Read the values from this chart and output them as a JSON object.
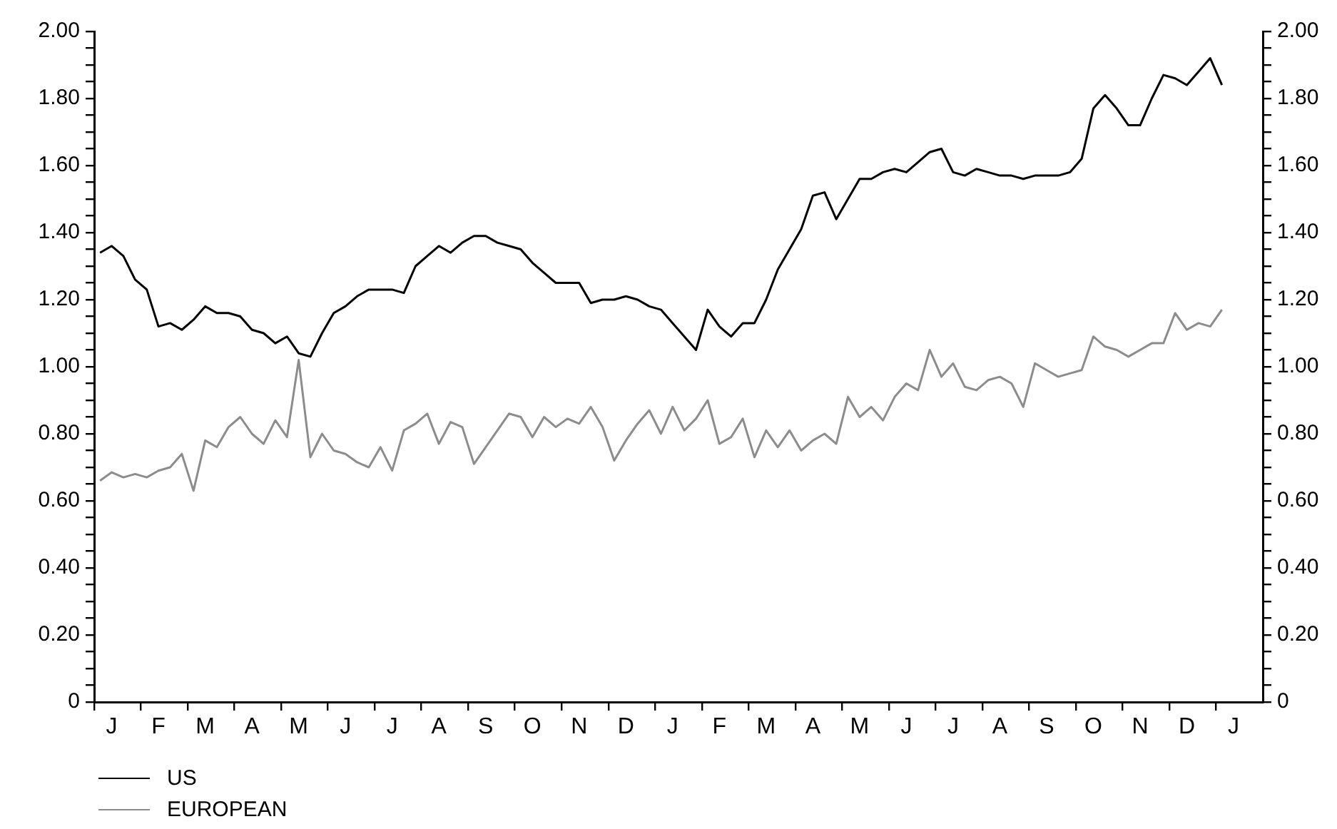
{
  "chart_data": {
    "type": "line",
    "categories": [
      null,
      "J",
      null,
      null,
      null,
      "F",
      null,
      null,
      null,
      "M",
      null,
      null,
      null,
      "A",
      null,
      null,
      null,
      "M",
      null,
      null,
      null,
      "J",
      null,
      null,
      null,
      "J",
      null,
      null,
      null,
      "A",
      null,
      null,
      null,
      "S",
      null,
      null,
      null,
      "O",
      null,
      null,
      null,
      "N",
      null,
      null,
      null,
      "D",
      null,
      null,
      null,
      "J",
      null,
      null,
      null,
      "F",
      null,
      null,
      null,
      "M",
      null,
      null,
      null,
      "A",
      null,
      null,
      null,
      "M",
      null,
      null,
      null,
      "J",
      null,
      null,
      null,
      "J",
      null,
      null,
      null,
      "A",
      null,
      null,
      null,
      "S",
      null,
      null,
      null,
      "O",
      null,
      null,
      null,
      "N",
      null,
      null,
      null,
      "D",
      null,
      null,
      null,
      "J",
      null,
      null
    ],
    "series": [
      {
        "name": "US",
        "color": "#000000",
        "values": [
          1.34,
          1.36,
          1.33,
          1.26,
          1.23,
          1.12,
          1.13,
          1.11,
          1.14,
          1.18,
          1.16,
          1.16,
          1.15,
          1.11,
          1.1,
          1.07,
          1.09,
          1.04,
          1.03,
          1.1,
          1.16,
          1.18,
          1.21,
          1.23,
          1.23,
          1.23,
          1.22,
          1.3,
          1.33,
          1.36,
          1.34,
          1.37,
          1.39,
          1.39,
          1.37,
          1.36,
          1.35,
          1.31,
          1.28,
          1.25,
          1.25,
          1.25,
          1.19,
          1.2,
          1.2,
          1.21,
          1.2,
          1.18,
          1.17,
          1.13,
          1.09,
          1.05,
          1.17,
          1.12,
          1.09,
          1.13,
          1.13,
          1.2,
          1.29,
          1.35,
          1.41,
          1.51,
          1.52,
          1.44,
          1.5,
          1.56,
          1.56,
          1.58,
          1.59,
          1.58,
          1.61,
          1.64,
          1.65,
          1.58,
          1.57,
          1.59,
          1.58,
          1.57,
          1.57,
          1.56,
          1.57,
          1.57,
          1.57,
          1.58,
          1.62,
          1.77,
          1.81,
          1.77,
          1.72,
          1.72,
          1.8,
          1.87,
          1.86,
          1.84,
          1.88,
          1.92,
          1.84,
          null,
          null,
          null
        ]
      },
      {
        "name": "EUROPEAN",
        "color": "#8c8c8c",
        "values": [
          0.66,
          0.685,
          0.67,
          0.68,
          0.67,
          0.69,
          0.7,
          0.74,
          0.63,
          0.78,
          0.76,
          0.82,
          0.85,
          0.8,
          0.77,
          0.84,
          0.79,
          1.02,
          0.73,
          0.8,
          0.75,
          0.74,
          0.715,
          0.7,
          0.76,
          0.69,
          0.81,
          0.83,
          0.86,
          0.77,
          0.835,
          0.82,
          0.71,
          0.76,
          0.81,
          0.86,
          0.85,
          0.79,
          0.85,
          0.82,
          0.845,
          0.83,
          0.88,
          0.82,
          0.72,
          0.78,
          0.83,
          0.87,
          0.8,
          0.88,
          0.81,
          0.845,
          0.9,
          0.77,
          0.79,
          0.845,
          0.73,
          0.81,
          0.76,
          0.81,
          0.75,
          0.78,
          0.8,
          0.77,
          0.91,
          0.85,
          0.88,
          0.84,
          0.91,
          0.95,
          0.93,
          1.05,
          0.97,
          1.01,
          0.94,
          0.93,
          0.96,
          0.97,
          0.95,
          0.88,
          1.01,
          0.99,
          0.97,
          0.98,
          0.99,
          1.09,
          1.06,
          1.05,
          1.03,
          1.05,
          1.07,
          1.07,
          1.16,
          1.11,
          1.13,
          1.12,
          1.17,
          null,
          null,
          null
        ]
      }
    ],
    "ylim": [
      0,
      2
    ],
    "yticks": [
      0,
      {
        "value": 0.05,
        "label": null
      },
      {
        "value": 0.1,
        "label": null
      },
      {
        "value": 0.15,
        "label": null
      },
      {
        "value": 0.2,
        "label": "0.20"
      },
      {
        "value": 0.25,
        "label": null
      },
      {
        "value": 0.3,
        "label": null
      },
      {
        "value": 0.35,
        "label": null
      },
      {
        "value": 0.4,
        "label": "0.40"
      },
      {
        "value": 0.45,
        "label": null
      },
      {
        "value": 0.5,
        "label": null
      },
      {
        "value": 0.55,
        "label": null
      },
      {
        "value": 0.6,
        "label": "0.60"
      },
      {
        "value": 0.65,
        "label": null
      },
      {
        "value": 0.7,
        "label": null
      },
      {
        "value": 0.75,
        "label": null
      },
      {
        "value": 0.8,
        "label": "0.80"
      },
      {
        "value": 0.85,
        "label": null
      },
      {
        "value": 0.9,
        "label": null
      },
      {
        "value": 0.95,
        "label": null
      },
      {
        "value": 1,
        "label": "1.00"
      },
      {
        "value": 1.05,
        "label": null
      },
      {
        "value": 1.1,
        "label": null
      },
      {
        "value": 1.15,
        "label": null
      },
      {
        "value": 1.2,
        "label": "1.20"
      },
      {
        "value": 1.25,
        "label": null
      },
      {
        "value": 1.3,
        "label": null
      },
      {
        "value": 1.35,
        "label": null
      },
      {
        "value": 1.4,
        "label": "1.40"
      },
      {
        "value": 1.45,
        "label": null
      },
      {
        "value": 1.5,
        "label": null
      },
      {
        "value": 1.55,
        "label": null
      },
      {
        "value": 1.6,
        "label": "1.60"
      },
      {
        "value": 1.65,
        "label": null
      },
      {
        "value": 1.7,
        "label": null
      },
      {
        "value": 1.75,
        "label": null
      },
      {
        "value": 1.8,
        "label": "1.80"
      },
      {
        "value": 1.85,
        "label": null
      },
      {
        "value": 1.9,
        "label": null
      },
      {
        "value": 1.95,
        "label": null
      },
      {
        "value": 2,
        "label": "2.00"
      }
    ],
    "y2lim": [
      0,
      2
    ],
    "y2ticks": [
      0,
      {
        "value": 0.05,
        "label": null
      },
      {
        "value": 0.1,
        "label": null
      },
      {
        "value": 0.15,
        "label": null
      },
      {
        "value": 0.2,
        "label": "0.20"
      },
      {
        "value": 0.25,
        "label": null
      },
      {
        "value": 0.3,
        "label": null
      },
      {
        "value": 0.35,
        "label": null
      },
      {
        "value": 0.4,
        "label": "0.40"
      },
      {
        "value": 0.45,
        "label": null
      },
      {
        "value": 0.5,
        "label": null
      },
      {
        "value": 0.55,
        "label": null
      },
      {
        "value": 0.6,
        "label": "0.60"
      },
      {
        "value": 0.65,
        "label": null
      },
      {
        "value": 0.7,
        "label": null
      },
      {
        "value": 0.75,
        "label": null
      },
      {
        "value": 0.8,
        "label": "0.80"
      },
      {
        "value": 0.85,
        "label": null
      },
      {
        "value": 0.9,
        "label": null
      },
      {
        "value": 0.95,
        "label": null
      },
      {
        "value": 1,
        "label": "1.00"
      },
      {
        "value": 1.05,
        "label": null
      },
      {
        "value": 1.1,
        "label": null
      },
      {
        "value": 1.15,
        "label": null
      },
      {
        "value": 1.2,
        "label": "1.20"
      },
      {
        "value": 1.25,
        "label": null
      },
      {
        "value": 1.3,
        "label": null
      },
      {
        "value": 1.35,
        "label": null
      },
      {
        "value": 1.4,
        "label": "1.40"
      },
      {
        "value": 1.45,
        "label": null
      },
      {
        "value": 1.5,
        "label": null
      },
      {
        "value": 1.55,
        "label": null
      },
      {
        "value": 1.6,
        "label": "1.60"
      },
      {
        "value": 1.65,
        "label": null
      },
      {
        "value": 1.7,
        "label": null
      },
      {
        "value": 1.75,
        "label": null
      },
      {
        "value": 1.8,
        "label": "1.80"
      },
      {
        "value": 1.85,
        "label": null
      },
      {
        "value": 1.9,
        "label": null
      },
      {
        "value": 1.95,
        "label": null
      },
      {
        "value": 2,
        "label": "2.00"
      }
    ],
    "grid": false,
    "legend": "bottom left",
    "marker": "none",
    "line_style": "solid"
  }
}
